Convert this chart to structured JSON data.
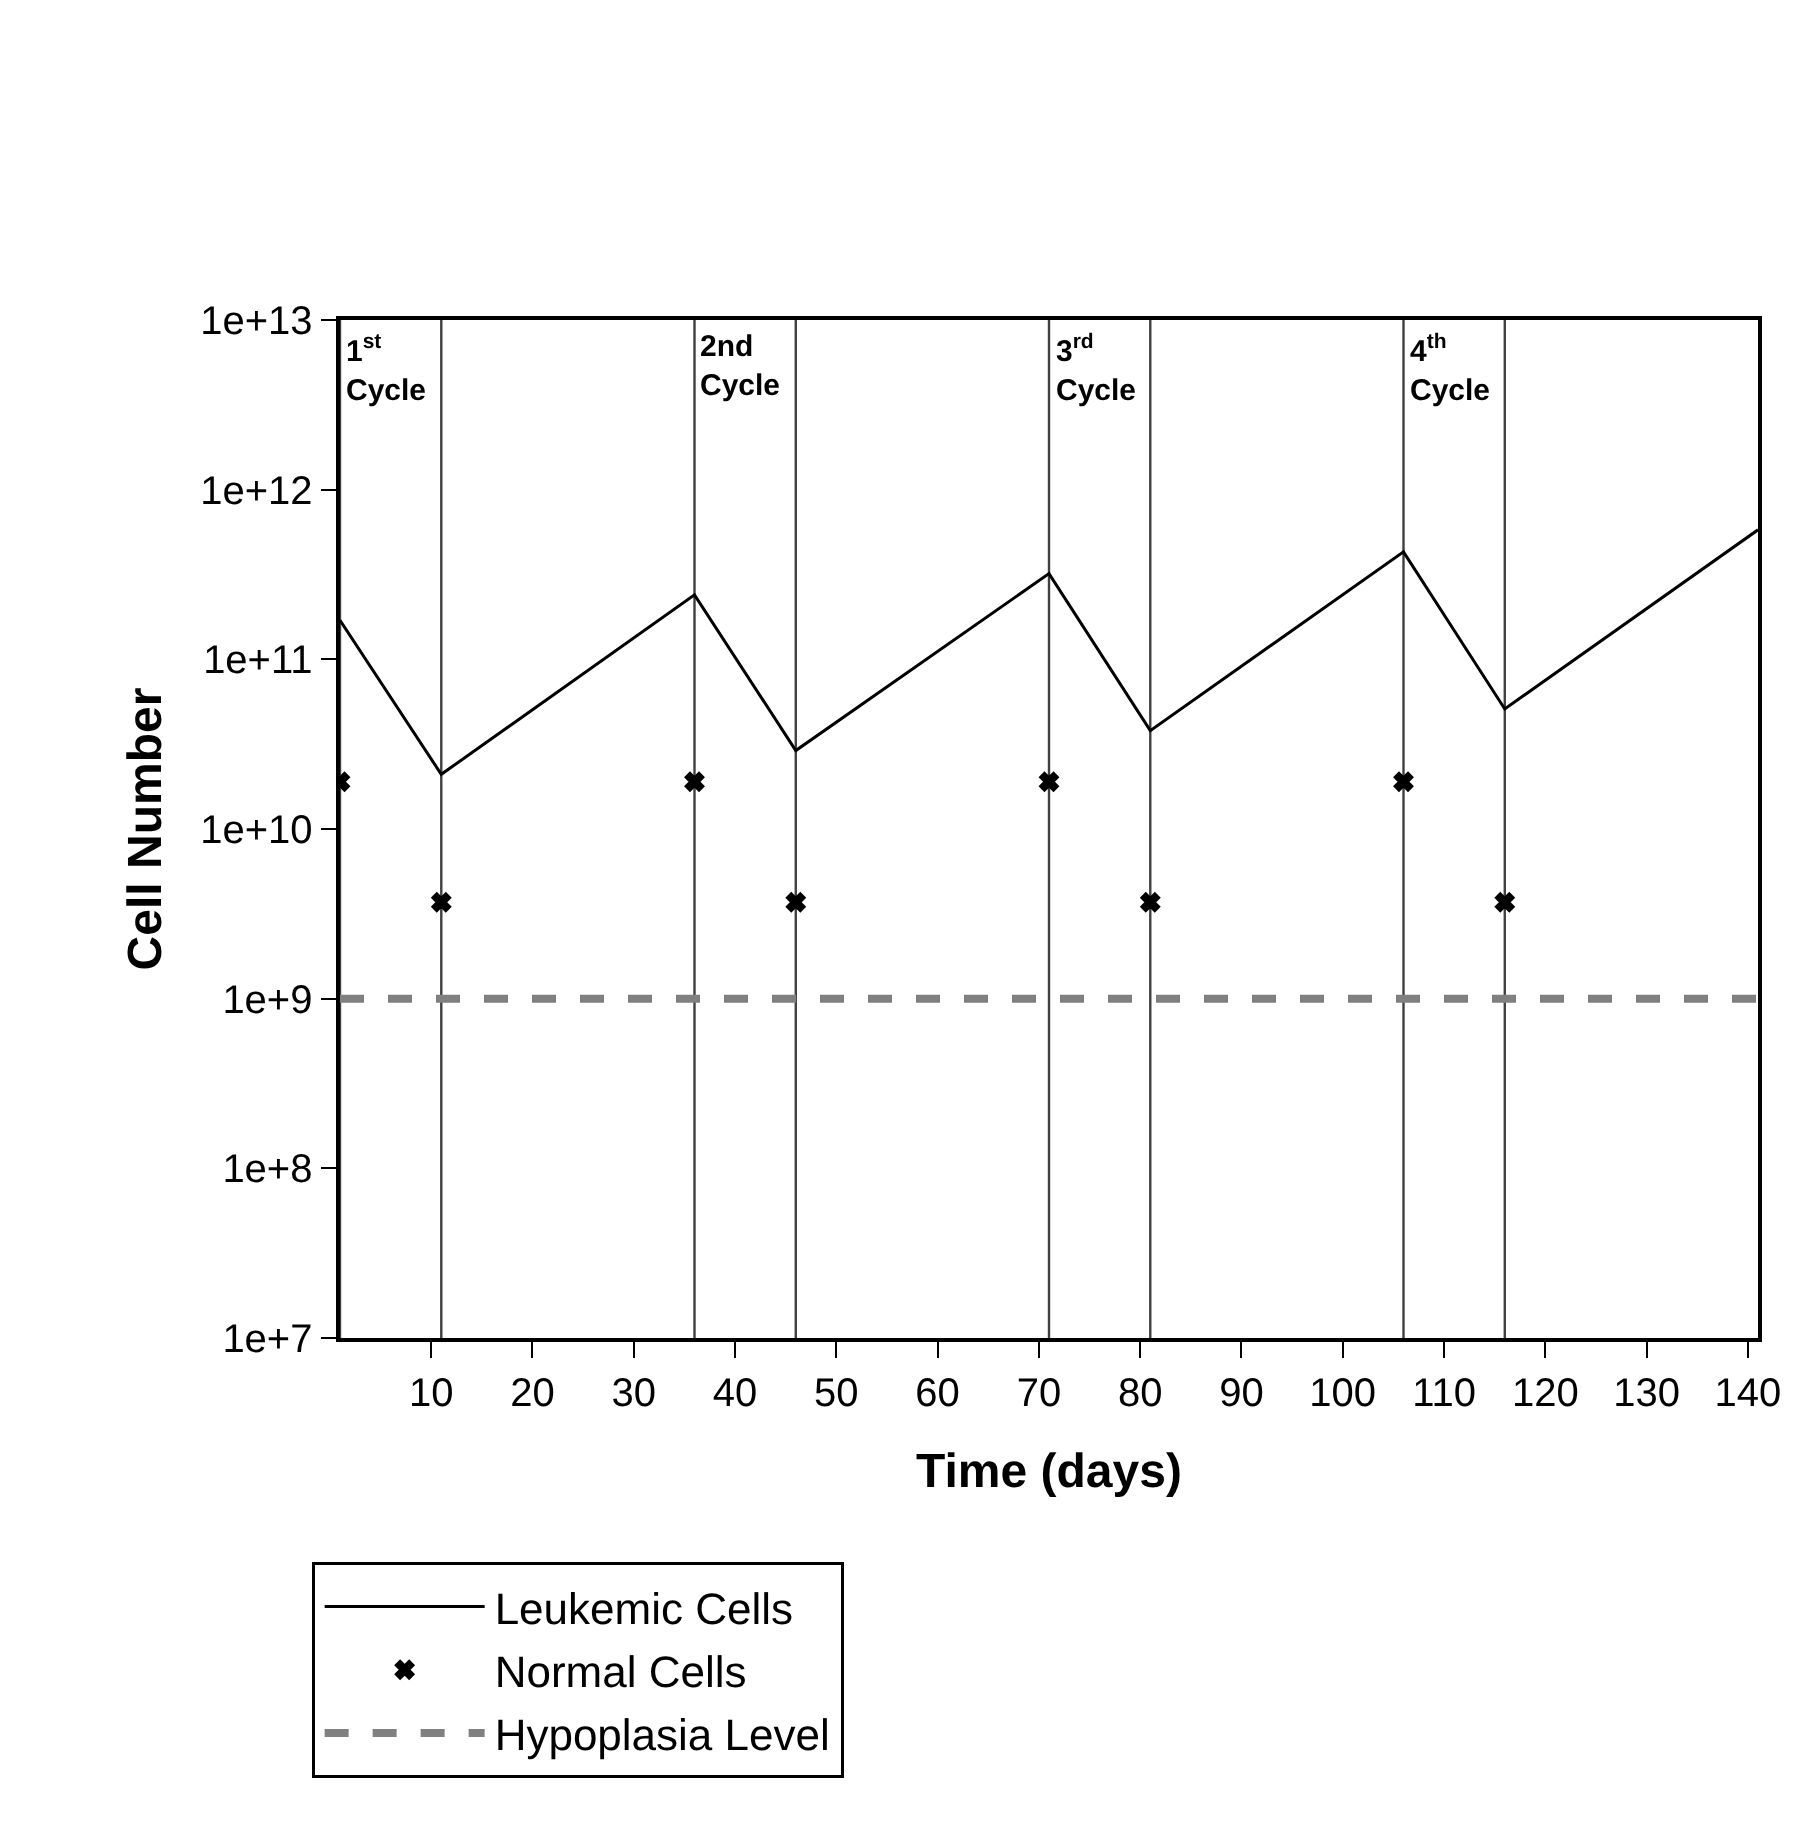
{
  "chart_data": {
    "type": "line",
    "xlabel": "Time (days)",
    "ylabel": "Cell Number",
    "xlim": [
      1,
      141
    ],
    "xticks": [
      10,
      20,
      30,
      40,
      50,
      60,
      70,
      80,
      90,
      100,
      110,
      120,
      130,
      140
    ],
    "log": "y",
    "ylim": [
      10000000.0,
      10000000000000.0
    ],
    "yticks": [
      {
        "value": 10000000.0,
        "label": "1e+7"
      },
      {
        "value": 100000000.0,
        "label": "1e+8"
      },
      {
        "value": 1000000000.0,
        "label": "1e+9"
      },
      {
        "value": 10000000000.0,
        "label": "1e+10"
      },
      {
        "value": 100000000000.0,
        "label": "1e+11"
      },
      {
        "value": 1000000000000.0,
        "label": "1e+12"
      },
      {
        "value": 10000000000000.0,
        "label": "1e+13"
      }
    ],
    "grid": false,
    "legend": "bottom left",
    "series": [
      {
        "name": "Leukemic Cells",
        "color": "#000000",
        "marker": "none",
        "line_style": "solid",
        "x": [
          1,
          11,
          36,
          46,
          71,
          81,
          106,
          116,
          141
        ],
        "values": [
          170000000000.0,
          21000000000.0,
          240000000000.0,
          29000000000.0,
          320000000000.0,
          38000000000.0,
          430000000000.0,
          51000000000.0,
          580000000000.0
        ]
      },
      {
        "name": "Normal Cells",
        "type": "scatter",
        "color": "#000000",
        "marker": "cross",
        "x": [
          1,
          11,
          36,
          46,
          71,
          81,
          106,
          116
        ],
        "values": [
          19000000000.0,
          3700000000.0,
          19000000000.0,
          3700000000.0,
          19000000000.0,
          3700000000.0,
          19000000000.0,
          3700000000.0
        ]
      },
      {
        "name": "Hypoplasia Level",
        "color": "#808080",
        "marker": "none",
        "line_style": "dashed",
        "x": [
          1,
          141
        ],
        "values": [
          1000000000.0,
          1000000000.0
        ]
      }
    ],
    "ref_lines": [
      {
        "axis": "x",
        "value": 1,
        "label": "1$^{st}$\nCycle",
        "color": "#404040"
      },
      {
        "axis": "x",
        "value": 11,
        "color": "#404040"
      },
      {
        "axis": "x",
        "value": 36,
        "label": "2nd\nCycle",
        "color": "#404040"
      },
      {
        "axis": "x",
        "value": 46,
        "color": "#404040"
      },
      {
        "axis": "x",
        "value": 71,
        "label": "3$^{rd}$\nCycle",
        "color": "#404040"
      },
      {
        "axis": "x",
        "value": 81,
        "color": "#404040"
      },
      {
        "axis": "x",
        "value": 106,
        "label": "4$^{th}$\nCycle",
        "color": "#404040"
      },
      {
        "axis": "x",
        "value": 116,
        "color": "#404040"
      }
    ]
  }
}
